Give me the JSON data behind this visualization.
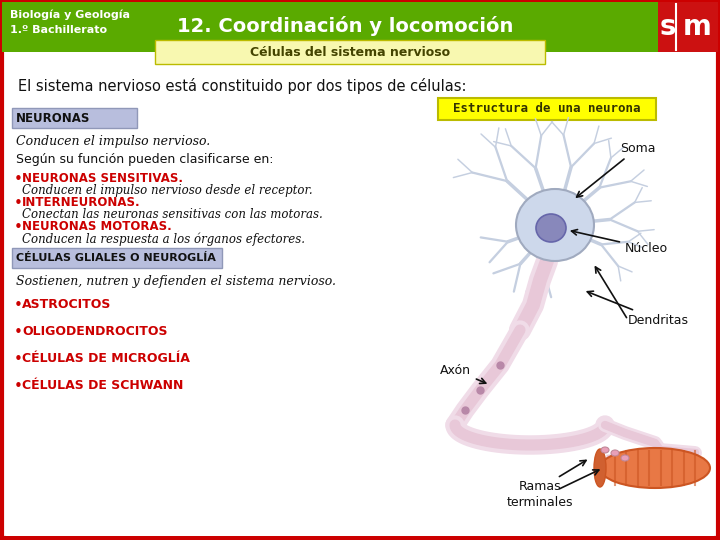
{
  "bg_color": "#ffffff",
  "header_green": "#5aaa00",
  "header_text_color": "#ffffff",
  "header_left": "Biología y Geología\n1.º Bachillerato",
  "header_center": "12. Coordinación y locomoción",
  "subtitle_box_color": "#f8f8b0",
  "subtitle_text": "Células del sistema nervioso",
  "intro_text": "El sistema nervioso está constituido por dos tipos de células:",
  "neuronas_box_color": "#b8bedd",
  "neuronas_label": "NEURONAS",
  "neuronas_desc": "Conducen el impulso nervioso.",
  "clasificacion_label": "Según su función pueden clasificarse en:",
  "bullet_red": "#cc0000",
  "bullets_bold": [
    "NEURONAS SENSITIVAS.",
    "INTERNEURONAS.",
    "NEURONAS MOTORAS."
  ],
  "bullets_italic": [
    "Conducen el impulso nervioso desde el receptor.",
    "Conectan las neuronas sensitivas con las motoras.",
    "Conducen la respuesta a los órganos efectores."
  ],
  "celulas_box_color": "#b8bedd",
  "celulas_label": "CÉLULAS GLIALES O NEUROGLÍA",
  "celulas_desc": "Sostienen, nutren y defienden el sistema nervioso.",
  "celulas_bullets": [
    "ASTROCITOS",
    "OLIGODENDROCITOS",
    "CÉLULAS DE MICROGLÍA",
    "CÉLULAS DE SCHWANN"
  ],
  "estructura_box_color": "#ffff00",
  "estructura_label": "Estructura de una neurona",
  "sm_red": "#cc1111",
  "sm_green": "#55aa00",
  "border_color": "#cc0000"
}
